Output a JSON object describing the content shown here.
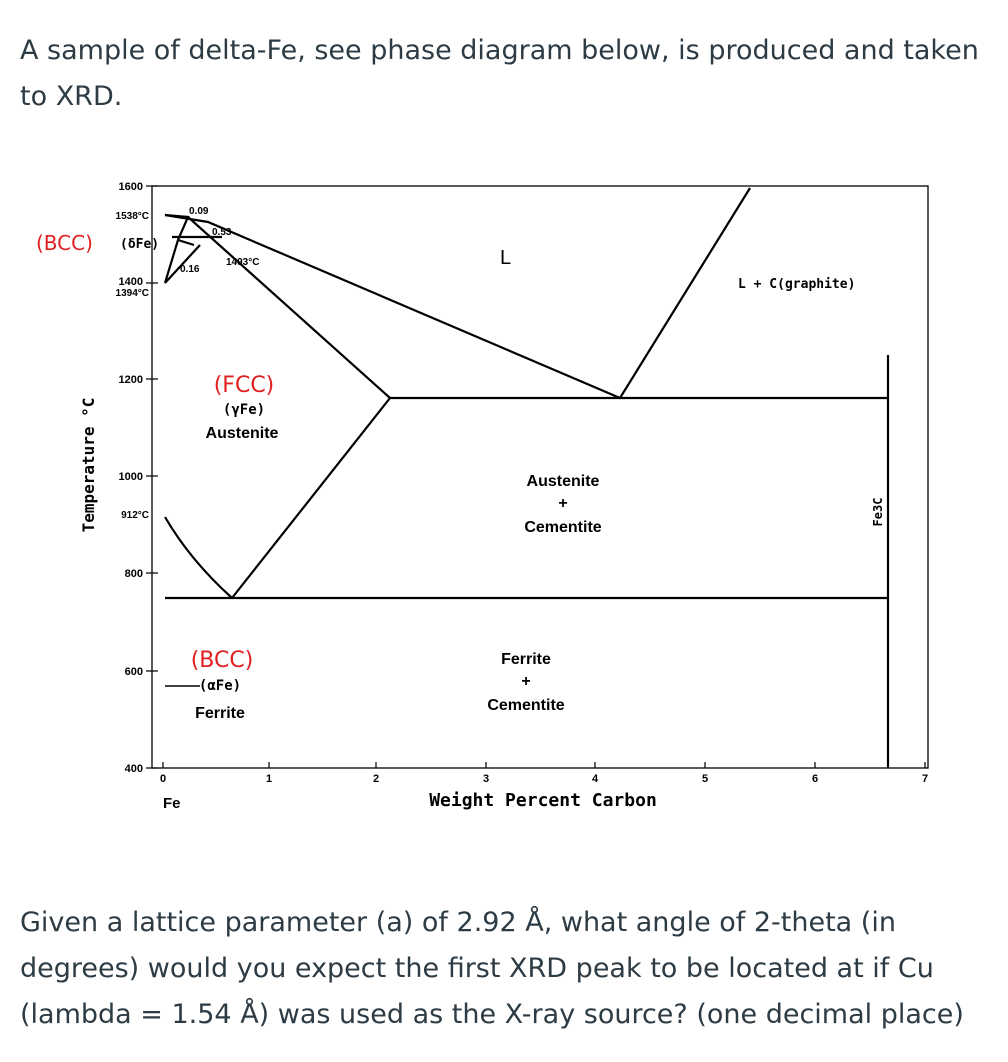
{
  "question": {
    "intro": "A sample of delta-Fe, see phase diagram below, is produced and taken to XRD.",
    "main": "Given a lattice parameter (a) of 2.92 Å, what angle of 2-theta (in degrees) would you expect the first XRD peak to be located at if Cu (lambda = 1.54 Å) was used as the X-ray source? (one decimal place)"
  },
  "diagram": {
    "ylabel": "Temperature °C",
    "xlabel": "Weight Percent Carbon",
    "x_ticks": [
      "0",
      "1",
      "2",
      "3",
      "4",
      "5",
      "6",
      "7"
    ],
    "y_ticks": [
      "1600",
      "1400",
      "1200",
      "1000",
      "800",
      "600",
      "400"
    ],
    "temp_marks": [
      "1538°C",
      "1394°C",
      "912°C"
    ],
    "point_labels": [
      "0.09",
      "0.53",
      "0.16",
      "1493°C"
    ],
    "fe_label": "Fe",
    "regions": {
      "liquid": "L",
      "l_graphite": "L + C(graphite)",
      "fcc": "(FCC)",
      "gamma": "(γFe)",
      "austenite": "Austenite",
      "aus_cem_1": "Austenite",
      "aus_cem_plus": "+",
      "aus_cem_2": "Cementite",
      "bcc_delta": "(BCC)",
      "delta": "(δFe)",
      "bcc_alpha": "(BCC)",
      "alpha": "(αFe)",
      "ferrite": "Ferrite",
      "fer_cem_1": "Ferrite",
      "fer_cem_plus": "+",
      "fer_cem_2": "Cementite",
      "fe3c": "Fe3C"
    },
    "colors": {
      "annotation": "#e02020",
      "lines": "#000000",
      "text": "#2d3b45"
    }
  }
}
